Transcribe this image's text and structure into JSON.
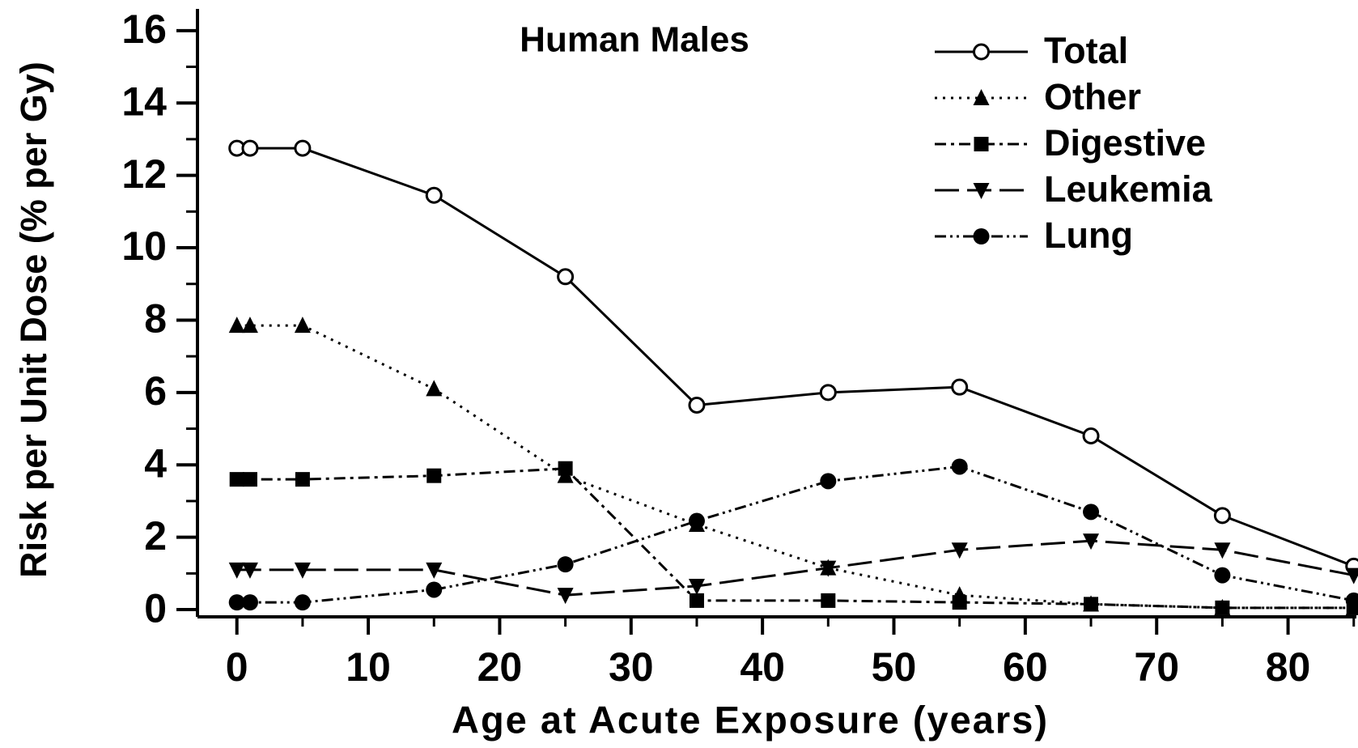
{
  "chart_data": {
    "type": "line",
    "title": "Human Males",
    "xlabel": "Age at Acute Exposure  (years)",
    "ylabel": "Risk per Unit Dose (% per Gy)",
    "x": [
      0,
      1,
      5,
      15,
      25,
      35,
      45,
      55,
      65,
      75,
      85
    ],
    "series": [
      {
        "name": "Total",
        "color": "#000000",
        "marker": "open-circle",
        "dash": "solid",
        "values": [
          12.75,
          12.75,
          12.75,
          11.45,
          9.2,
          5.65,
          6.0,
          6.15,
          4.8,
          2.6,
          1.2
        ]
      },
      {
        "name": "Other",
        "color": "#000000",
        "marker": "triangle-up",
        "dash": "dotted",
        "values": [
          7.85,
          7.85,
          7.85,
          6.1,
          3.7,
          2.35,
          1.15,
          0.4,
          0.15,
          0.05,
          0.05
        ]
      },
      {
        "name": "Digestive",
        "color": "#000000",
        "marker": "square",
        "dash": "dash-dot",
        "values": [
          3.6,
          3.6,
          3.6,
          3.7,
          3.9,
          0.25,
          0.25,
          0.2,
          0.15,
          0.05,
          0.05
        ]
      },
      {
        "name": "Leukemia",
        "color": "#000000",
        "marker": "triangle-down",
        "dash": "long-dash",
        "values": [
          1.1,
          1.1,
          1.1,
          1.1,
          0.4,
          0.65,
          1.15,
          1.65,
          1.9,
          1.65,
          0.95
        ]
      },
      {
        "name": "Lung",
        "color": "#000000",
        "marker": "filled-circle",
        "dash": "dash-dot-dot",
        "values": [
          0.2,
          0.2,
          0.2,
          0.55,
          1.25,
          2.45,
          3.55,
          3.95,
          2.7,
          0.95,
          0.25
        ]
      }
    ],
    "xlim": [
      -3,
      85.2
    ],
    "xticks": [
      0,
      10,
      20,
      30,
      40,
      50,
      60,
      70,
      80
    ],
    "minor_xticks": [
      5,
      15,
      25,
      35,
      45,
      55,
      65,
      75,
      85
    ],
    "ylim": [
      -0.2,
      16.6
    ],
    "yticks": [
      0,
      2,
      4,
      6,
      8,
      10,
      12,
      14,
      16
    ],
    "minor_yticks": [
      1,
      3,
      5,
      7,
      9,
      11,
      13,
      15
    ],
    "grid": false,
    "legend": "upper right"
  }
}
